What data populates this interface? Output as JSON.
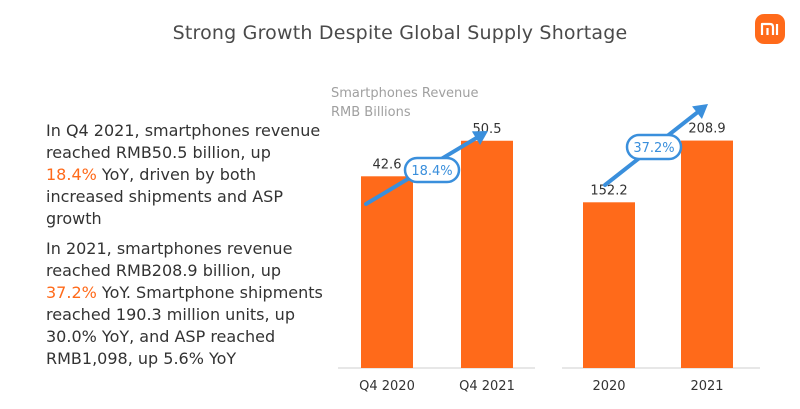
{
  "header": {
    "title": "Strong Growth Despite Global Supply Shortage"
  },
  "logo": {
    "text": "mi"
  },
  "chart_header": {
    "line1": "Smartphones Revenue",
    "line2": "RMB Billions"
  },
  "paragraph1": {
    "part1": "In Q4 2021, smartphones revenue reached RMB50.5 billion, up ",
    "highlight": "18.4%",
    "part2": " YoY, driven by both increased shipments and ASP growth"
  },
  "paragraph2": {
    "part1": "In 2021, smartphones revenue reached RMB208.9 billion, up ",
    "highlight": "37.2%",
    "part2": " YoY. Smartphone shipments reached 190.3 million units, up 30.0% YoY, and ASP reached RMB1,098, up 5.6% YoY"
  },
  "colors": {
    "bar": "#ff6a1a",
    "arrow": "#3a8fdc",
    "highlight": "#ff6a1a",
    "axis": "#cfcfcf"
  },
  "chart_data": [
    {
      "type": "bar",
      "title": "Smartphones Revenue",
      "ylabel": "RMB Billions",
      "categories": [
        "Q4 2020",
        "Q4 2021"
      ],
      "values": [
        42.6,
        50.5
      ],
      "labels": [
        "42.6",
        "50.5"
      ],
      "growth_label": "18.4%",
      "ylim": [
        0,
        60
      ]
    },
    {
      "type": "bar",
      "title": "Smartphones Revenue",
      "ylabel": "RMB Billions",
      "categories": [
        "2020",
        "2021"
      ],
      "values": [
        152.2,
        208.9
      ],
      "labels": [
        "152.2",
        "208.9"
      ],
      "growth_label": "37.2%",
      "ylim": [
        0,
        248
      ]
    }
  ]
}
